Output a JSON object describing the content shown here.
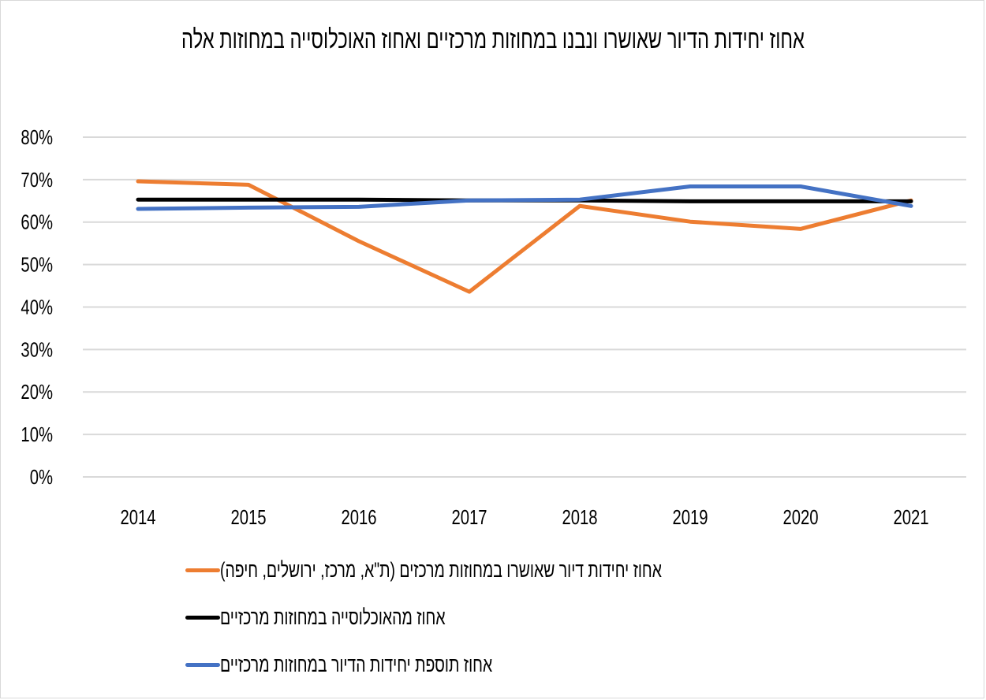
{
  "chart_data": {
    "type": "line",
    "title": "אחוז יחידות הדיור שאושרו ונבנו במחוזות מרכזיים ואחוז האוכלוסייה במחוזות אלה",
    "xlabel": "",
    "ylabel": "",
    "categories": [
      "2014",
      "2015",
      "2016",
      "2017",
      "2018",
      "2019",
      "2020",
      "2021"
    ],
    "ylim": [
      0,
      80
    ],
    "yticks": [
      0,
      10,
      20,
      30,
      40,
      50,
      60,
      70,
      80
    ],
    "ytick_labels": [
      "0%",
      "10%",
      "20%",
      "30%",
      "40%",
      "50%",
      "60%",
      "70%",
      "80%"
    ],
    "grid": true,
    "legend_position": "bottom",
    "series": [
      {
        "name": "אחוז יחידות דיור שאושרו במחוזות מרכזים (ת\"א, מרכז, ירושלים, חיפה)",
        "color": "#ED7D31",
        "values": [
          69.6,
          68.8,
          55.5,
          43.6,
          63.8,
          60.1,
          58.4,
          65.1
        ]
      },
      {
        "name": "אחוז מהאוכלוסייה במחוזות מרכזיים",
        "color": "#000000",
        "values": [
          65.3,
          65.3,
          65.3,
          65.1,
          65.1,
          64.9,
          64.9,
          64.9
        ]
      },
      {
        "name": "אחוז תוספת יחידות הדיור במחוזות מרכזיים",
        "color": "#4472C4",
        "values": [
          63.1,
          63.4,
          63.6,
          65.1,
          65.3,
          68.4,
          68.4,
          63.8
        ]
      }
    ]
  }
}
